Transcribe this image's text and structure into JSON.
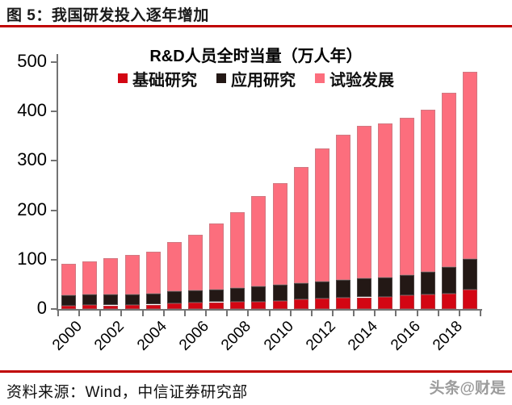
{
  "header": {
    "title": "图 5：我国研发投入逐年增加"
  },
  "chart_data": {
    "type": "bar",
    "stacked": true,
    "title": "R&D人员全时当量（万人年）",
    "categories": [
      "2000",
      "2001",
      "2002",
      "2003",
      "2004",
      "2005",
      "2006",
      "2007",
      "2008",
      "2009",
      "2010",
      "2011",
      "2012",
      "2013",
      "2014",
      "2015",
      "2016",
      "2017",
      "2018",
      "2019"
    ],
    "x_tick_label_step": 2,
    "ylim": [
      0,
      500
    ],
    "yticks": [
      0,
      100,
      200,
      300,
      400,
      500
    ],
    "grid": false,
    "legend_position": "top-center",
    "series": [
      {
        "key": "basic",
        "name": "基础研究",
        "color": "#d30613",
        "values": [
          6.9,
          8.0,
          7.4,
          8.0,
          9.0,
          11.5,
          13.1,
          13.9,
          15.3,
          14.8,
          16.4,
          19.3,
          21.0,
          22.3,
          23.6,
          25.3,
          27.5,
          29.2,
          30.5,
          39.2
        ]
      },
      {
        "key": "applied",
        "name": "应用研究",
        "color": "#231815",
        "values": [
          20.7,
          21.7,
          21.8,
          21.6,
          22.7,
          24.4,
          24.1,
          24.9,
          27.1,
          30.5,
          33.2,
          32.5,
          34.8,
          36.4,
          37.8,
          38.4,
          41.7,
          45.8,
          54.4,
          61.5
        ]
      },
      {
        "key": "experimental",
        "name": "试验发展",
        "color": "#fc6e7d",
        "values": [
          64.6,
          66.0,
          74.3,
          79.9,
          83.6,
          100.6,
          113.1,
          134.8,
          154.1,
          183.8,
          205.8,
          236.5,
          268.9,
          294.6,
          309.7,
          312.2,
          318.6,
          328.4,
          353.2,
          379.4
        ]
      }
    ]
  },
  "footer": {
    "source": "资料来源：Wind，中信证券研究部",
    "watermark": "头条@财是"
  },
  "colors": {
    "rule": "#c00000",
    "axis": "#737373",
    "label_text": "#000000"
  }
}
